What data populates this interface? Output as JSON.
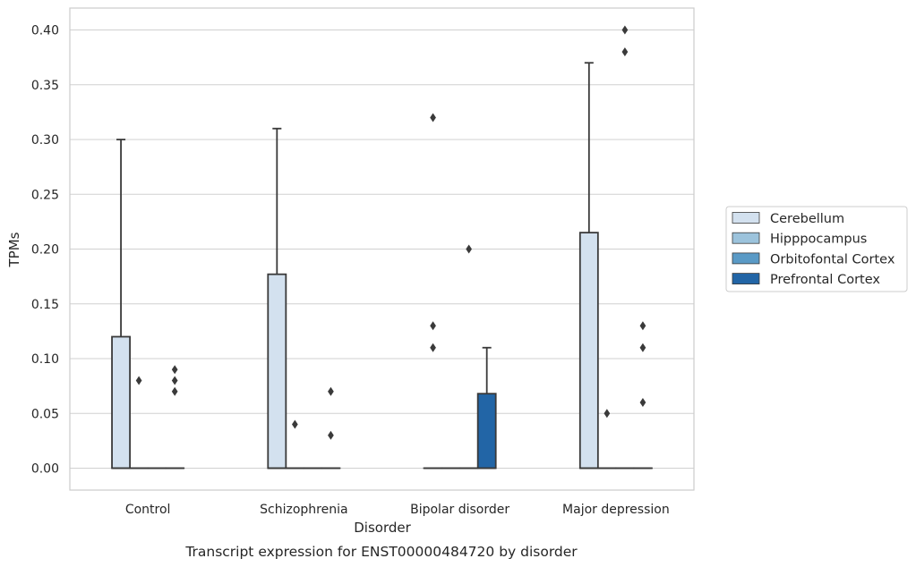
{
  "caption": "Transcript expression for ENST00000484720 by disorder",
  "chart_data": {
    "type": "box",
    "title": "",
    "xlabel": "Disorder",
    "ylabel": "TPMs",
    "ylim": [
      -0.02,
      0.42
    ],
    "yticks": [
      "0.00",
      "0.05",
      "0.10",
      "0.15",
      "0.20",
      "0.25",
      "0.30",
      "0.35",
      "0.40"
    ],
    "ytick_values": [
      0,
      0.05,
      0.1,
      0.15,
      0.2,
      0.25,
      0.3,
      0.35,
      0.4
    ],
    "grid": true,
    "legend_position": "right",
    "categories": [
      "Control",
      "Schizophrenia",
      "Bipolar disorder",
      "Major depression"
    ],
    "series": [
      {
        "name": "Cerebellum",
        "color": "#d3e1ef",
        "boxes": [
          {
            "q1": 0,
            "median": 0,
            "q3": 0.12,
            "whisker_low": 0,
            "whisker_high": 0.3,
            "outliers": []
          },
          {
            "q1": 0,
            "median": 0,
            "q3": 0.177,
            "whisker_low": 0,
            "whisker_high": 0.31,
            "outliers": []
          },
          {
            "q1": 0,
            "median": 0,
            "q3": 0,
            "whisker_low": 0,
            "whisker_high": 0,
            "outliers": [
              0.32,
              0.13,
              0.11
            ]
          },
          {
            "q1": 0,
            "median": 0,
            "q3": 0.215,
            "whisker_low": 0,
            "whisker_high": 0.37,
            "outliers": []
          }
        ]
      },
      {
        "name": "Hipppocampus",
        "color": "#9cc3dc",
        "boxes": [
          {
            "q1": 0,
            "median": 0,
            "q3": 0,
            "whisker_low": 0,
            "whisker_high": 0,
            "outliers": [
              0.08
            ]
          },
          {
            "q1": 0,
            "median": 0,
            "q3": 0,
            "whisker_low": 0,
            "whisker_high": 0,
            "outliers": [
              0.04
            ]
          },
          {
            "q1": 0,
            "median": 0,
            "q3": 0,
            "whisker_low": 0,
            "whisker_high": 0,
            "outliers": []
          },
          {
            "q1": 0,
            "median": 0,
            "q3": 0,
            "whisker_low": 0,
            "whisker_high": 0,
            "outliers": [
              0.05
            ]
          }
        ]
      },
      {
        "name": "Orbitofontal Cortex",
        "color": "#5a9ac6",
        "boxes": [
          {
            "q1": 0,
            "median": 0,
            "q3": 0,
            "whisker_low": 0,
            "whisker_high": 0,
            "outliers": []
          },
          {
            "q1": 0,
            "median": 0,
            "q3": 0,
            "whisker_low": 0,
            "whisker_high": 0,
            "outliers": []
          },
          {
            "q1": 0,
            "median": 0,
            "q3": 0,
            "whisker_low": 0,
            "whisker_high": 0,
            "outliers": [
              0.2
            ]
          },
          {
            "q1": 0,
            "median": 0,
            "q3": 0,
            "whisker_low": 0,
            "whisker_high": 0,
            "outliers": [
              0.4,
              0.38
            ]
          }
        ]
      },
      {
        "name": "Prefrontal Cortex",
        "color": "#2265a6",
        "boxes": [
          {
            "q1": 0,
            "median": 0,
            "q3": 0,
            "whisker_low": 0,
            "whisker_high": 0,
            "outliers": [
              0.09,
              0.08,
              0.07
            ]
          },
          {
            "q1": 0,
            "median": 0,
            "q3": 0,
            "whisker_low": 0,
            "whisker_high": 0,
            "outliers": [
              0.07,
              0.03
            ]
          },
          {
            "q1": 0,
            "median": 0,
            "q3": 0.068,
            "whisker_low": 0,
            "whisker_high": 0.11,
            "outliers": []
          },
          {
            "q1": 0,
            "median": 0,
            "q3": 0,
            "whisker_low": 0,
            "whisker_high": 0,
            "outliers": [
              0.13,
              0.11,
              0.06
            ]
          }
        ]
      }
    ]
  }
}
